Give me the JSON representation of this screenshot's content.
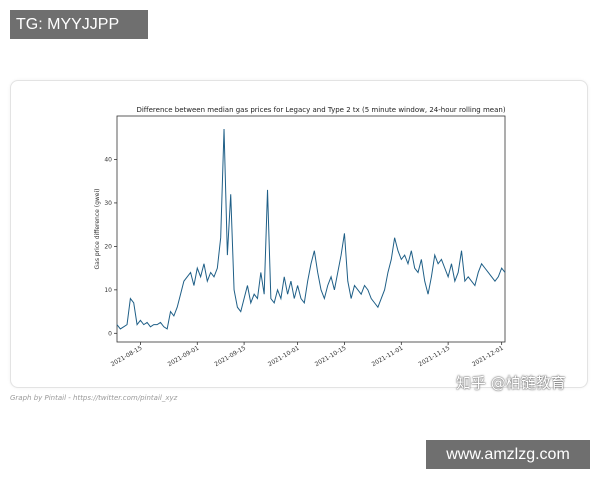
{
  "watermarks": {
    "top_tag": "TG: MYYJJPP",
    "bottom_tag": "www.amzlzg.com",
    "cn_mark": "知乎 @柏链教育"
  },
  "credit": "Graph by Pintail - https://twitter.com/pintail_xyz",
  "chart_data": {
    "type": "line",
    "title": "Difference between median gas prices for Legacy and Type 2 tx (5 minute window, 24-hour rolling mean)",
    "xlabel": "",
    "ylabel": "Gas price difference (gwei)",
    "xlim": [
      "2021-08-08",
      "2021-12-02"
    ],
    "ylim": [
      -2,
      50
    ],
    "yticks": [
      0,
      10,
      20,
      30,
      40
    ],
    "xticks": [
      "2021-08-15",
      "2021-09-01",
      "2021-09-15",
      "2021-10-01",
      "2021-10-15",
      "2021-11-01",
      "2021-11-15",
      "2021-12-01"
    ],
    "grid": false,
    "line_color": "#1f5f87",
    "series": [
      {
        "name": "",
        "points": [
          [
            "2021-08-08",
            2
          ],
          [
            "2021-08-09",
            1
          ],
          [
            "2021-08-10",
            1.5
          ],
          [
            "2021-08-11",
            2
          ],
          [
            "2021-08-12",
            8
          ],
          [
            "2021-08-13",
            7
          ],
          [
            "2021-08-14",
            2
          ],
          [
            "2021-08-15",
            3
          ],
          [
            "2021-08-16",
            2
          ],
          [
            "2021-08-17",
            2.5
          ],
          [
            "2021-08-18",
            1.5
          ],
          [
            "2021-08-19",
            2
          ],
          [
            "2021-08-20",
            2
          ],
          [
            "2021-08-21",
            2.5
          ],
          [
            "2021-08-22",
            1.5
          ],
          [
            "2021-08-23",
            1
          ],
          [
            "2021-08-24",
            5
          ],
          [
            "2021-08-25",
            4
          ],
          [
            "2021-08-26",
            6
          ],
          [
            "2021-08-27",
            9
          ],
          [
            "2021-08-28",
            12
          ],
          [
            "2021-08-29",
            13
          ],
          [
            "2021-08-30",
            14
          ],
          [
            "2021-08-31",
            11
          ],
          [
            "2021-09-01",
            15
          ],
          [
            "2021-09-02",
            13
          ],
          [
            "2021-09-03",
            16
          ],
          [
            "2021-09-04",
            12
          ],
          [
            "2021-09-05",
            14
          ],
          [
            "2021-09-06",
            13
          ],
          [
            "2021-09-07",
            15
          ],
          [
            "2021-09-08",
            22
          ],
          [
            "2021-09-09",
            47
          ],
          [
            "2021-09-10",
            18
          ],
          [
            "2021-09-11",
            32
          ],
          [
            "2021-09-12",
            10
          ],
          [
            "2021-09-13",
            6
          ],
          [
            "2021-09-14",
            5
          ],
          [
            "2021-09-15",
            8
          ],
          [
            "2021-09-16",
            11
          ],
          [
            "2021-09-17",
            7
          ],
          [
            "2021-09-18",
            9
          ],
          [
            "2021-09-19",
            8
          ],
          [
            "2021-09-20",
            14
          ],
          [
            "2021-09-21",
            9
          ],
          [
            "2021-09-22",
            33
          ],
          [
            "2021-09-23",
            8
          ],
          [
            "2021-09-24",
            7
          ],
          [
            "2021-09-25",
            10
          ],
          [
            "2021-09-26",
            8
          ],
          [
            "2021-09-27",
            13
          ],
          [
            "2021-09-28",
            9
          ],
          [
            "2021-09-29",
            12
          ],
          [
            "2021-09-30",
            8
          ],
          [
            "2021-10-01",
            11
          ],
          [
            "2021-10-02",
            8
          ],
          [
            "2021-10-03",
            7
          ],
          [
            "2021-10-04",
            12
          ],
          [
            "2021-10-05",
            16
          ],
          [
            "2021-10-06",
            19
          ],
          [
            "2021-10-07",
            14
          ],
          [
            "2021-10-08",
            10
          ],
          [
            "2021-10-09",
            8
          ],
          [
            "2021-10-10",
            11
          ],
          [
            "2021-10-11",
            13
          ],
          [
            "2021-10-12",
            10
          ],
          [
            "2021-10-13",
            14
          ],
          [
            "2021-10-14",
            18
          ],
          [
            "2021-10-15",
            23
          ],
          [
            "2021-10-16",
            12
          ],
          [
            "2021-10-17",
            8
          ],
          [
            "2021-10-18",
            11
          ],
          [
            "2021-10-19",
            10
          ],
          [
            "2021-10-20",
            9
          ],
          [
            "2021-10-21",
            11
          ],
          [
            "2021-10-22",
            10
          ],
          [
            "2021-10-23",
            8
          ],
          [
            "2021-10-24",
            7
          ],
          [
            "2021-10-25",
            6
          ],
          [
            "2021-10-26",
            8
          ],
          [
            "2021-10-27",
            10
          ],
          [
            "2021-10-28",
            14
          ],
          [
            "2021-10-29",
            17
          ],
          [
            "2021-10-30",
            22
          ],
          [
            "2021-10-31",
            19
          ],
          [
            "2021-11-01",
            17
          ],
          [
            "2021-11-02",
            18
          ],
          [
            "2021-11-03",
            16
          ],
          [
            "2021-11-04",
            19
          ],
          [
            "2021-11-05",
            15
          ],
          [
            "2021-11-06",
            14
          ],
          [
            "2021-11-07",
            17
          ],
          [
            "2021-11-08",
            12
          ],
          [
            "2021-11-09",
            9
          ],
          [
            "2021-11-10",
            13
          ],
          [
            "2021-11-11",
            18
          ],
          [
            "2021-11-12",
            16
          ],
          [
            "2021-11-13",
            17
          ],
          [
            "2021-11-14",
            15
          ],
          [
            "2021-11-15",
            13
          ],
          [
            "2021-11-16",
            16
          ],
          [
            "2021-11-17",
            12
          ],
          [
            "2021-11-18",
            14
          ],
          [
            "2021-11-19",
            19
          ],
          [
            "2021-11-20",
            12
          ],
          [
            "2021-11-21",
            13
          ],
          [
            "2021-11-22",
            12
          ],
          [
            "2021-11-23",
            11
          ],
          [
            "2021-11-24",
            14
          ],
          [
            "2021-11-25",
            16
          ],
          [
            "2021-11-26",
            15
          ],
          [
            "2021-11-27",
            14
          ],
          [
            "2021-11-28",
            13
          ],
          [
            "2021-11-29",
            12
          ],
          [
            "2021-11-30",
            13
          ],
          [
            "2021-12-01",
            15
          ],
          [
            "2021-12-02",
            14
          ]
        ]
      }
    ]
  }
}
